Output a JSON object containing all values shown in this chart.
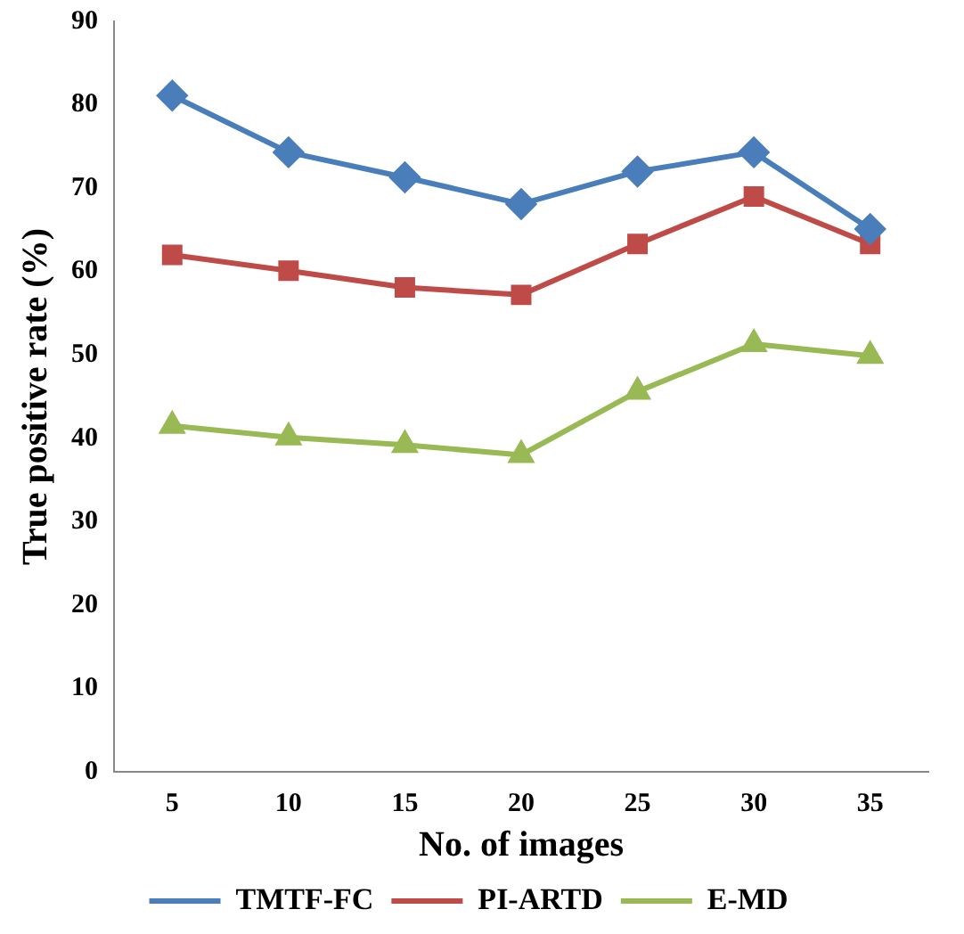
{
  "chart_data": {
    "type": "line",
    "xlabel": "No. of images",
    "ylabel": "True positive rate (%)",
    "categories": [
      "5",
      "10",
      "15",
      "20",
      "25",
      "30",
      "35"
    ],
    "series": [
      {
        "name": "TMTF-FC",
        "color": "#4a7ebb",
        "marker": "diamond",
        "values": [
          81.1,
          74.3,
          71.3,
          68.1,
          72,
          74.3,
          65.1
        ]
      },
      {
        "name": "PI-ARTD",
        "color": "#be4b48",
        "marker": "square",
        "values": [
          62,
          60.1,
          58.1,
          57.2,
          63.3,
          69,
          63.3
        ]
      },
      {
        "name": "E-MD",
        "color": "#98b954",
        "marker": "triangle",
        "values": [
          41.5,
          40.1,
          39.2,
          38,
          45.6,
          51.3,
          49.9
        ]
      }
    ],
    "ylim": [
      0,
      90
    ],
    "yticks": [
      0,
      10,
      20,
      30,
      40,
      50,
      60,
      70,
      80,
      90
    ],
    "grid": false,
    "legend": "bottom"
  }
}
